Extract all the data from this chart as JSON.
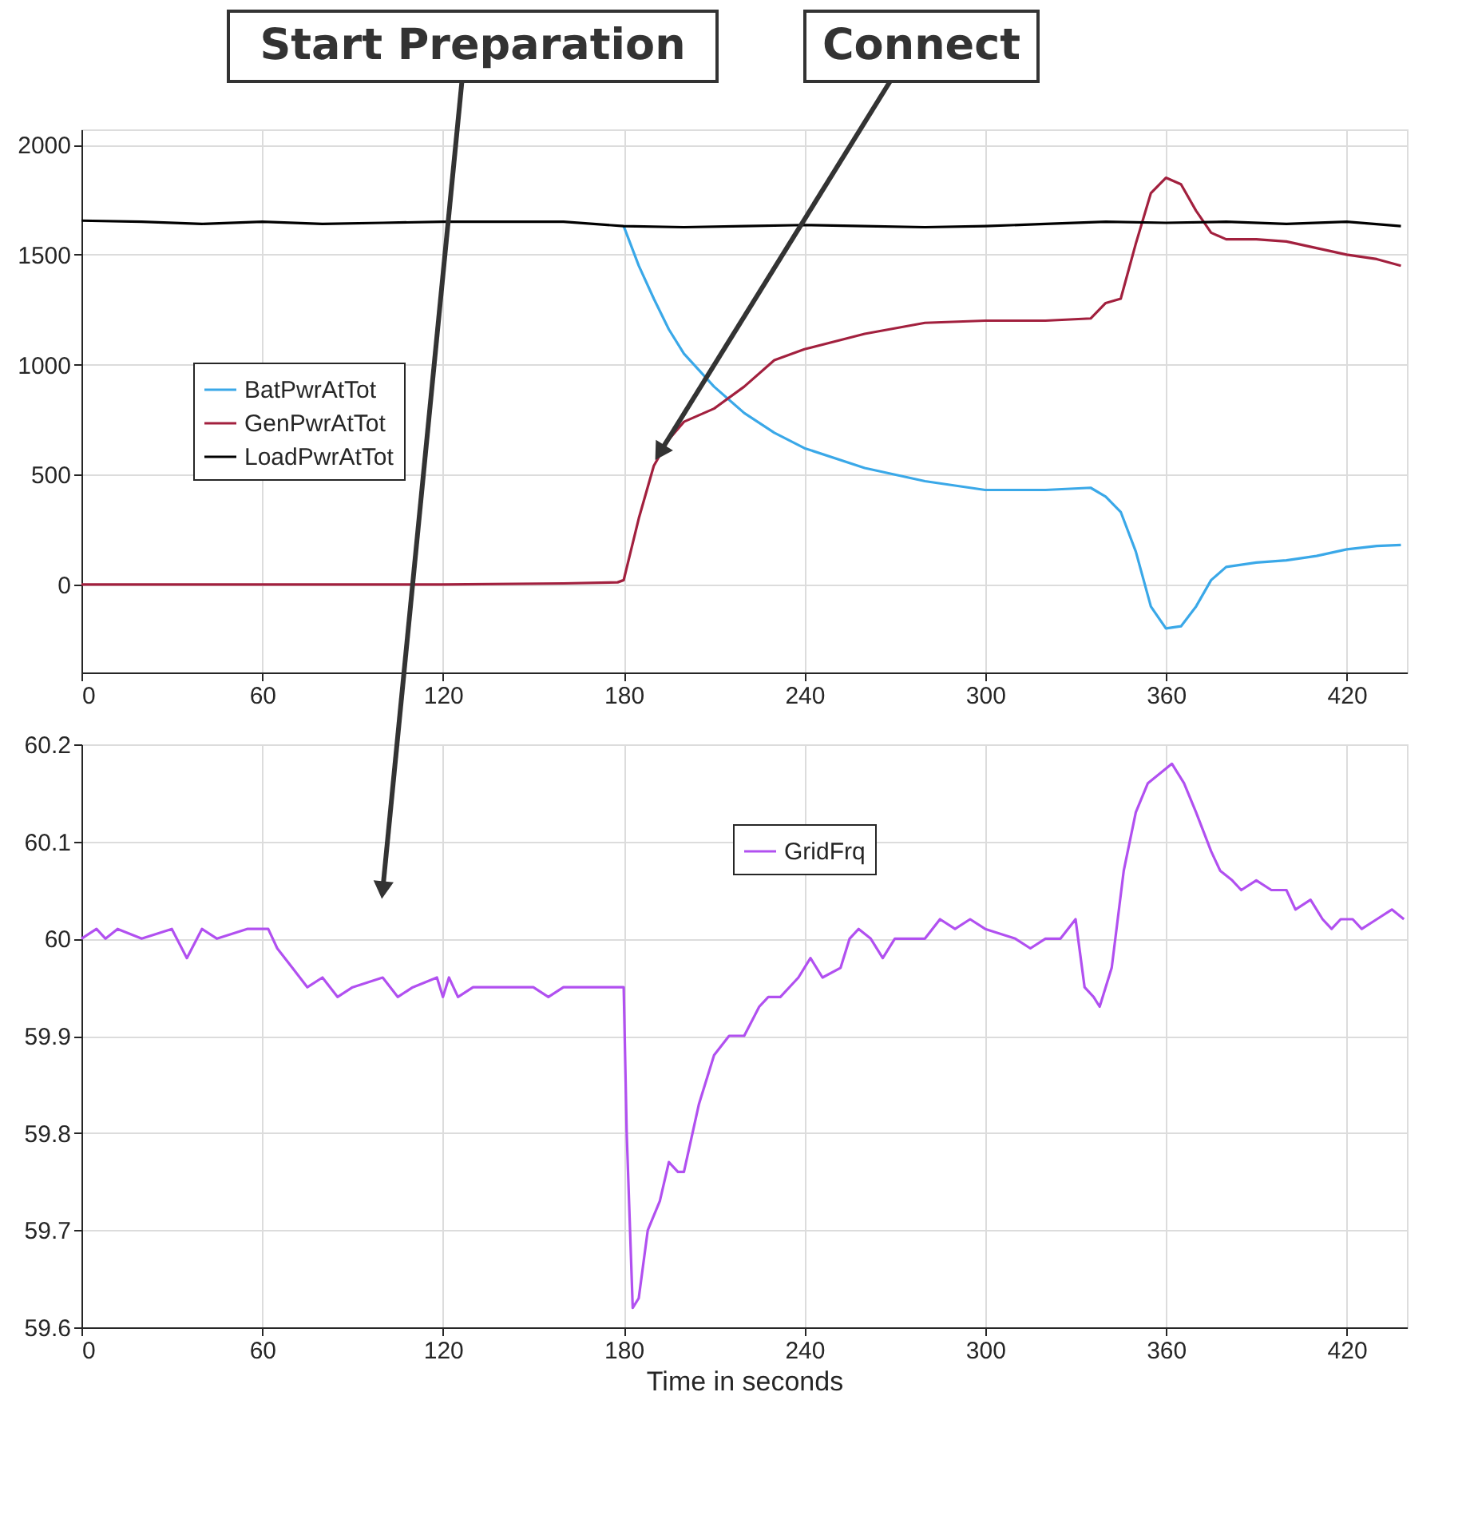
{
  "chart_data": [
    {
      "type": "line",
      "xlim": [
        0,
        440
      ],
      "xticks": [
        0,
        60,
        120,
        180,
        240,
        300,
        360,
        420
      ],
      "ylim": [
        -400,
        2070
      ],
      "yticks": [
        0,
        500,
        1000,
        1500,
        2000
      ],
      "grid": true,
      "legend": "left",
      "annotations": [
        {
          "text": "Connect",
          "x": 192,
          "y": 600
        }
      ],
      "series": [
        {
          "name": "BatPwrAtTot",
          "color": "#3aa8e8",
          "x": [
            180,
            185,
            190,
            195,
            200,
            210,
            220,
            230,
            240,
            260,
            280,
            300,
            320,
            335,
            340,
            345,
            350,
            355,
            360,
            365,
            370,
            375,
            380,
            390,
            400,
            410,
            420,
            430,
            438
          ],
          "values": [
            1630,
            1450,
            1300,
            1160,
            1050,
            900,
            780,
            690,
            620,
            530,
            470,
            430,
            430,
            440,
            400,
            330,
            150,
            -100,
            -200,
            -190,
            -100,
            20,
            80,
            100,
            110,
            130,
            160,
            175,
            180
          ]
        },
        {
          "name": "GenPwrAtTot",
          "color": "#a2203e",
          "x": [
            0,
            40,
            80,
            120,
            160,
            178,
            180,
            185,
            190,
            195,
            200,
            210,
            220,
            230,
            240,
            260,
            280,
            300,
            320,
            335,
            340,
            345,
            350,
            355,
            360,
            365,
            370,
            375,
            380,
            390,
            400,
            410,
            420,
            430,
            438
          ],
          "values": [
            0,
            0,
            0,
            0,
            5,
            10,
            20,
            300,
            540,
            660,
            740,
            800,
            900,
            1020,
            1070,
            1140,
            1190,
            1200,
            1200,
            1210,
            1280,
            1300,
            1550,
            1780,
            1850,
            1820,
            1700,
            1600,
            1570,
            1570,
            1560,
            1530,
            1500,
            1480,
            1450
          ]
        },
        {
          "name": "LoadPwrAtTot",
          "color": "#000000",
          "x": [
            0,
            20,
            40,
            60,
            80,
            100,
            120,
            140,
            160,
            180,
            200,
            220,
            240,
            260,
            280,
            300,
            320,
            340,
            360,
            380,
            400,
            420,
            438
          ],
          "values": [
            1655,
            1650,
            1640,
            1650,
            1640,
            1645,
            1650,
            1650,
            1650,
            1630,
            1625,
            1630,
            1635,
            1630,
            1625,
            1630,
            1640,
            1650,
            1645,
            1650,
            1640,
            1650,
            1630
          ]
        }
      ]
    },
    {
      "type": "line",
      "xlabel": "Time in seconds",
      "xlim": [
        0,
        440
      ],
      "xticks": [
        0,
        60,
        120,
        180,
        240,
        300,
        360,
        420
      ],
      "ylim": [
        59.6,
        60.2
      ],
      "yticks": [
        59.6,
        59.7,
        59.8,
        59.9,
        60,
        60.1,
        60.2
      ],
      "grid": true,
      "legend": "top",
      "annotations": [
        {
          "text": "Start Preparation",
          "x": 100,
          "y": 60.05
        }
      ],
      "series": [
        {
          "name": "GridFrq",
          "color": "#b150f0",
          "x": [
            0,
            5,
            8,
            12,
            20,
            30,
            35,
            40,
            45,
            55,
            62,
            65,
            70,
            75,
            80,
            85,
            90,
            100,
            105,
            110,
            118,
            120,
            122,
            125,
            130,
            150,
            155,
            160,
            180,
            181,
            183,
            185,
            188,
            192,
            195,
            198,
            200,
            205,
            210,
            215,
            220,
            225,
            228,
            232,
            238,
            242,
            246,
            252,
            255,
            258,
            262,
            266,
            270,
            280,
            285,
            290,
            295,
            300,
            310,
            315,
            320,
            325,
            330,
            333,
            336,
            338,
            342,
            346,
            350,
            354,
            358,
            362,
            366,
            370,
            375,
            378,
            382,
            385,
            390,
            395,
            400,
            403,
            408,
            412,
            415,
            418,
            422,
            425,
            430,
            435,
            439
          ],
          "values": [
            60.0,
            60.01,
            60.0,
            60.01,
            60.0,
            60.01,
            59.98,
            60.01,
            60.0,
            60.01,
            60.01,
            59.99,
            59.97,
            59.95,
            59.96,
            59.94,
            59.95,
            59.96,
            59.94,
            59.95,
            59.96,
            59.94,
            59.96,
            59.94,
            59.95,
            59.95,
            59.94,
            59.95,
            59.95,
            59.8,
            59.62,
            59.63,
            59.7,
            59.73,
            59.77,
            59.76,
            59.76,
            59.83,
            59.88,
            59.9,
            59.9,
            59.93,
            59.94,
            59.94,
            59.96,
            59.98,
            59.96,
            59.97,
            60.0,
            60.01,
            60.0,
            59.98,
            60.0,
            60.0,
            60.02,
            60.01,
            60.02,
            60.01,
            60.0,
            59.99,
            60.0,
            60.0,
            60.02,
            59.95,
            59.94,
            59.93,
            59.97,
            60.07,
            60.13,
            60.16,
            60.17,
            60.18,
            60.16,
            60.13,
            60.09,
            60.07,
            60.06,
            60.05,
            60.06,
            60.05,
            60.05,
            60.03,
            60.04,
            60.02,
            60.01,
            60.02,
            60.02,
            60.01,
            60.02,
            60.03,
            60.02
          ]
        }
      ]
    }
  ]
}
